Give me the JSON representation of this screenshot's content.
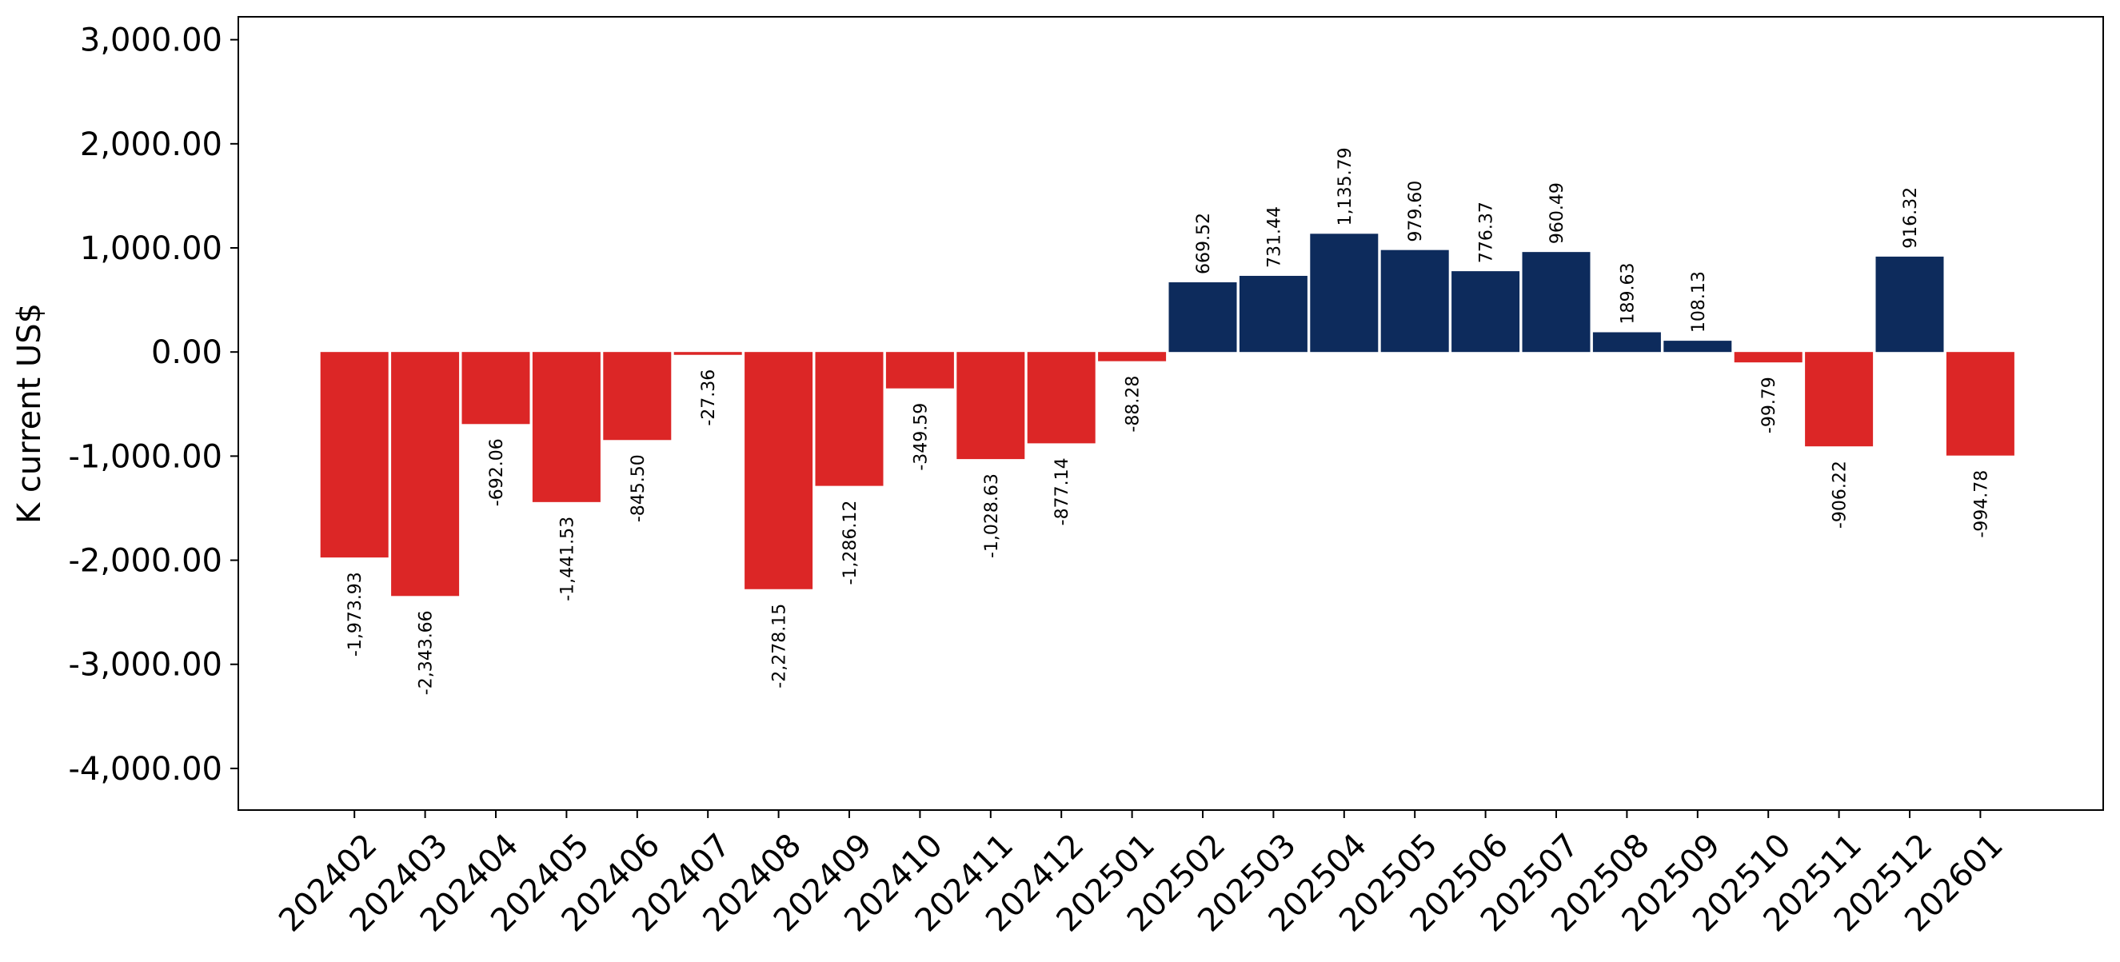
{
  "chart_data": {
    "type": "bar",
    "title": "",
    "xlabel": "",
    "ylabel": "K current US$",
    "ylim": [
      -4400,
      3220
    ],
    "yticks": [
      3000,
      2000,
      1000,
      0,
      -1000,
      -2000,
      -3000,
      -4000
    ],
    "ytick_labels": [
      "3,000.00",
      "2,000.00",
      "1,000.00",
      "0.00",
      "-1,000.00",
      "-2,000.00",
      "-3,000.00",
      "-4,000.00"
    ],
    "grid": false,
    "legend": "none",
    "colors": {
      "positive": "#0d2b5c",
      "negative": "#dc2626"
    },
    "categories": [
      "202402",
      "202403",
      "202404",
      "202405",
      "202406",
      "202407",
      "202408",
      "202409",
      "202410",
      "202411",
      "202412",
      "202501",
      "202502",
      "202503",
      "202504",
      "202505",
      "202506",
      "202507",
      "202508",
      "202509",
      "202510",
      "202511",
      "202512",
      "202601"
    ],
    "values": [
      -1973.93,
      -2343.66,
      -692.06,
      -1441.53,
      -845.5,
      -27.36,
      -2278.15,
      -1286.12,
      -349.59,
      -1028.63,
      -877.14,
      -88.28,
      669.52,
      731.44,
      1135.79,
      979.6,
      776.37,
      960.49,
      189.63,
      108.13,
      -99.79,
      -906.22,
      916.32,
      -994.78
    ],
    "value_labels": [
      "-1,973.93",
      "-2,343.66",
      "-692.06",
      "-1,441.53",
      "-845.50",
      "-27.36",
      "-2,278.15",
      "-1,286.12",
      "-349.59",
      "-1,028.63",
      "-877.14",
      "-88.28",
      "669.52",
      "731.44",
      "1,135.79",
      "979.60",
      "776.37",
      "960.49",
      "189.63",
      "108.13",
      "-99.79",
      "-906.22",
      "916.32",
      "-994.78"
    ]
  }
}
